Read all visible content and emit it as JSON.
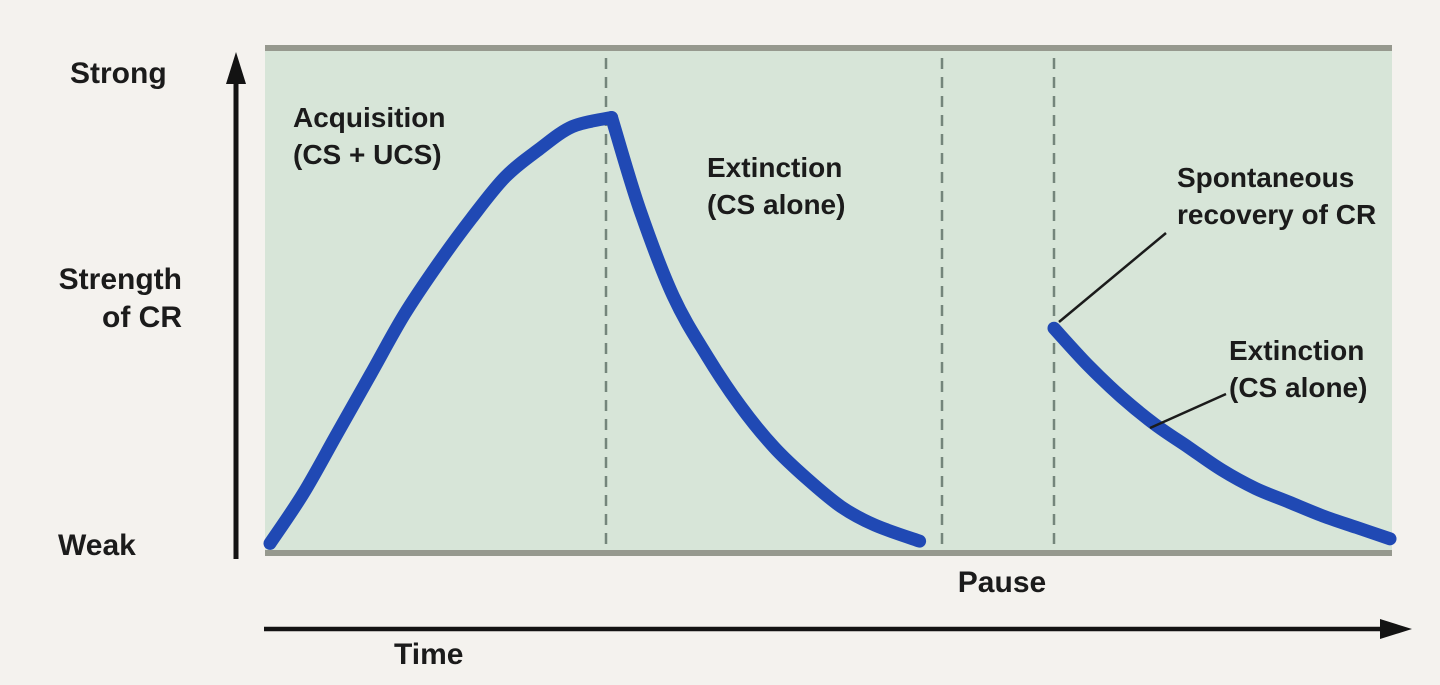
{
  "page": {
    "background": "#f4f2ee",
    "description": "Classical conditioning curve: acquisition, extinction, and spontaneous recovery of a conditioned response"
  },
  "chart": {
    "plot_bg": "#d7e5d8",
    "curve_color": "#2049b4",
    "border_color": "#96998e",
    "dashed_color": "#74857b",
    "text_color": "#1b1b1b",
    "labels": {
      "y_top": "Strong",
      "y_title_line1": "Strength",
      "y_title_line2": "of CR",
      "y_bottom": "Weak",
      "x_title": "Time",
      "pause": "Pause",
      "acquisition_line1": "Acquisition",
      "acquisition_line2": "(CS + UCS)",
      "extinction1_line1": "Extinction",
      "extinction1_line2": "(CS alone)",
      "recovery_line1": "Spontaneous",
      "recovery_line2": "recovery of CR",
      "extinction2_line1": "Extinction",
      "extinction2_line2": "(CS alone)"
    }
  },
  "chart_data": {
    "type": "line",
    "title": "Strength of conditioned response (CR) over time",
    "xlabel": "Time",
    "ylabel": "Strength of CR",
    "xlim": [
      0,
      10
    ],
    "ylim": [
      0,
      1
    ],
    "y_tick_labels": [
      "Weak",
      "Strong"
    ],
    "grid": false,
    "phase_dividers_x": [
      3.0,
      6.0,
      7.0
    ],
    "x_annotations": [
      {
        "label": "Pause",
        "x_center": 6.5
      }
    ],
    "phases": [
      {
        "label": "Acquisition (CS + UCS)",
        "x_range": [
          0,
          3
        ]
      },
      {
        "label": "Extinction (CS alone)",
        "x_range": [
          3,
          6
        ]
      },
      {
        "label": "Pause",
        "x_range": [
          6,
          7
        ]
      },
      {
        "label": "Spontaneous recovery of CR, then Extinction (CS alone)",
        "x_range": [
          7,
          10
        ]
      }
    ],
    "series": [
      {
        "id": "acquisition",
        "name": "Acquisition (CS + UCS)",
        "points": [
          [
            0,
            0.01
          ],
          [
            0.3,
            0.12
          ],
          [
            0.6,
            0.25
          ],
          [
            0.9,
            0.38
          ],
          [
            1.2,
            0.51
          ],
          [
            1.5,
            0.62
          ],
          [
            1.8,
            0.72
          ],
          [
            2.1,
            0.81
          ],
          [
            2.4,
            0.87
          ],
          [
            2.7,
            0.92
          ],
          [
            3.05,
            0.94
          ]
        ]
      },
      {
        "id": "extinction-1",
        "name": "Extinction (CS alone)",
        "points": [
          [
            3.05,
            0.94
          ],
          [
            3.3,
            0.74
          ],
          [
            3.6,
            0.55
          ],
          [
            3.9,
            0.42
          ],
          [
            4.2,
            0.31
          ],
          [
            4.5,
            0.22
          ],
          [
            4.8,
            0.15
          ],
          [
            5.1,
            0.09
          ],
          [
            5.4,
            0.05
          ],
          [
            5.8,
            0.015
          ]
        ]
      },
      {
        "id": "spontaneous-recovery-extinction",
        "name": "Spontaneous recovery of CR, then Extinction (CS alone)",
        "points": [
          [
            7.0,
            0.48
          ],
          [
            7.3,
            0.4
          ],
          [
            7.6,
            0.33
          ],
          [
            7.9,
            0.27
          ],
          [
            8.2,
            0.22
          ],
          [
            8.5,
            0.17
          ],
          [
            8.8,
            0.13
          ],
          [
            9.1,
            0.1
          ],
          [
            9.4,
            0.07
          ],
          [
            9.7,
            0.045
          ],
          [
            10.0,
            0.02
          ]
        ]
      }
    ]
  }
}
